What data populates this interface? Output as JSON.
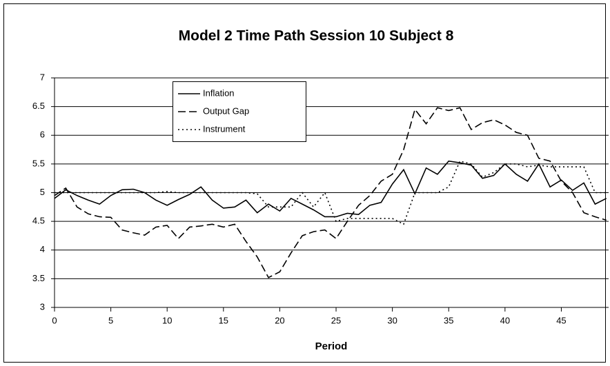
{
  "chart_data": {
    "type": "line",
    "title": "Model 2 Time Path Session 10 Subject 8",
    "x_label": "Period",
    "x": [
      0,
      1,
      2,
      3,
      4,
      5,
      6,
      7,
      8,
      9,
      10,
      11,
      12,
      13,
      14,
      15,
      16,
      17,
      18,
      19,
      20,
      21,
      22,
      23,
      24,
      25,
      26,
      27,
      28,
      29,
      30,
      31,
      32,
      33,
      34,
      35,
      36,
      37,
      38,
      39,
      40,
      41,
      42,
      43,
      44,
      45,
      46,
      47,
      48,
      49
    ],
    "series": [
      {
        "name": "Inflation",
        "color": "#000000",
        "style": "solid",
        "values": [
          4.9,
          5.05,
          4.95,
          4.87,
          4.8,
          4.95,
          5.05,
          5.06,
          5.0,
          4.87,
          4.78,
          4.88,
          4.97,
          5.1,
          4.87,
          4.73,
          4.75,
          4.87,
          4.65,
          4.8,
          4.68,
          4.9,
          4.8,
          4.7,
          4.58,
          4.58,
          4.64,
          4.62,
          4.78,
          4.83,
          5.15,
          5.4,
          4.98,
          5.43,
          5.32,
          5.55,
          5.52,
          5.48,
          5.25,
          5.3,
          5.5,
          5.32,
          5.2,
          5.5,
          5.1,
          5.22,
          5.04,
          5.17,
          4.8,
          4.9
        ]
      },
      {
        "name": "Output Gap",
        "color": "#000000",
        "style": "dashed",
        "values": [
          4.95,
          5.08,
          4.75,
          4.63,
          4.58,
          4.57,
          4.35,
          4.3,
          4.26,
          4.4,
          4.43,
          4.2,
          4.4,
          4.42,
          4.45,
          4.4,
          4.45,
          4.15,
          3.88,
          3.52,
          3.62,
          3.95,
          4.25,
          4.32,
          4.35,
          4.2,
          4.5,
          4.78,
          4.95,
          5.2,
          5.32,
          5.75,
          6.45,
          6.2,
          6.48,
          6.43,
          6.48,
          6.1,
          6.22,
          6.27,
          6.18,
          6.05,
          6.0,
          5.6,
          5.55,
          5.2,
          5.0,
          4.65,
          4.58,
          4.52
        ]
      },
      {
        "name": "Instrument",
        "color": "#000000",
        "style": "dotted",
        "values": [
          5.0,
          5.0,
          5.0,
          5.0,
          5.0,
          5.0,
          5.0,
          5.0,
          5.0,
          5.0,
          5.02,
          5.0,
          5.0,
          5.0,
          5.0,
          5.0,
          5.0,
          5.0,
          4.98,
          4.75,
          4.75,
          4.75,
          5.0,
          4.75,
          5.0,
          4.5,
          4.55,
          4.55,
          4.55,
          4.55,
          4.55,
          4.45,
          5.0,
          5.0,
          5.0,
          5.1,
          5.55,
          5.5,
          5.27,
          5.35,
          5.5,
          5.5,
          5.45,
          5.48,
          5.45,
          5.45,
          5.45,
          5.45,
          5.0,
          5.0
        ]
      }
    ],
    "xlim": [
      0,
      49.2
    ],
    "xticks": [
      0,
      5,
      10,
      15,
      20,
      25,
      30,
      35,
      40,
      45
    ],
    "ylim": [
      3,
      7
    ],
    "yticks": [
      3,
      3.5,
      4,
      4.5,
      5,
      5.5,
      6,
      6.5,
      7
    ],
    "grid": true,
    "legend": "upper-left"
  }
}
